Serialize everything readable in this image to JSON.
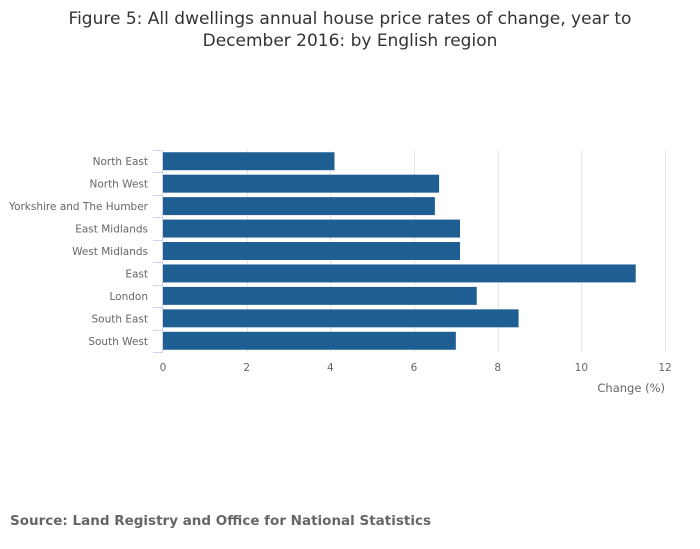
{
  "title_lines": [
    "Figure 5: All dwellings annual house price rates of change, year to",
    "December 2016: by English region"
  ],
  "source": "Source: Land Registry and Office for National Statistics",
  "colors": {
    "bar": "#1f5e92",
    "grid": "#e6e6e6",
    "axis": "#ccd6eb"
  },
  "chart_data": {
    "type": "bar",
    "orientation": "horizontal",
    "title": "Figure 5: All dwellings annual house price rates of change, year to December 2016: by English region",
    "categories": [
      "North East",
      "North West",
      "Yorkshire and The Humber",
      "East Midlands",
      "West Midlands",
      "East",
      "London",
      "South East",
      "South West"
    ],
    "values": [
      4.1,
      6.6,
      6.5,
      7.1,
      7.1,
      11.3,
      7.5,
      8.5,
      7.0
    ],
    "xlabel": "Change (%)",
    "ylabel": "",
    "xlim": [
      0,
      12
    ],
    "xticks": [
      0,
      2,
      4,
      6,
      8,
      10,
      12
    ],
    "grid": true,
    "legend": "none"
  }
}
